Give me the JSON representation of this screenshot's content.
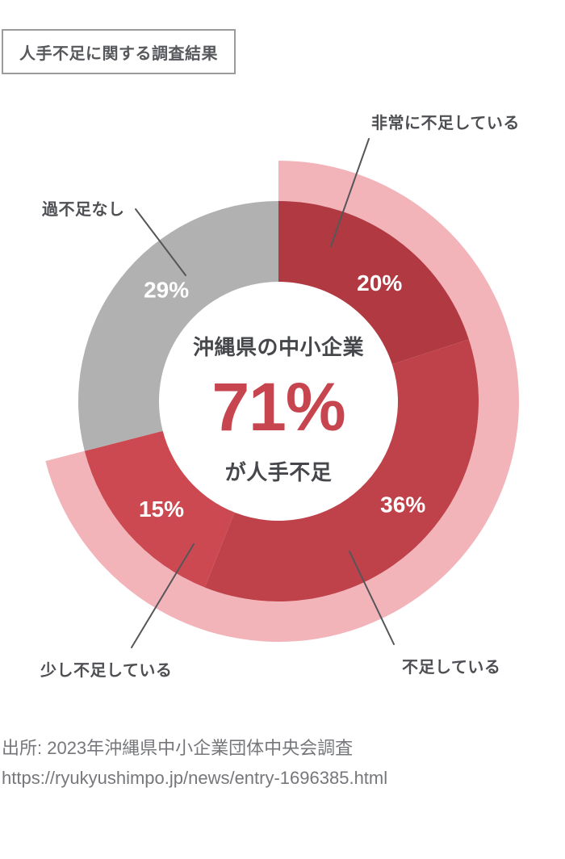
{
  "header": {
    "title": "人手不足に関する調査結果"
  },
  "chart_data": {
    "type": "pie",
    "donut": true,
    "title": "人手不足に関する調査結果",
    "unit": "%",
    "start_angle_deg": 0,
    "direction": "clockwise",
    "legend_position": "callout-labels",
    "segments": [
      {
        "label": "非常に不足している",
        "value": 20,
        "color": "#b13a42"
      },
      {
        "label": "不足している",
        "value": 36,
        "color": "#bf4149"
      },
      {
        "label": "少し不足している",
        "value": 15,
        "color": "#cc4951"
      },
      {
        "label": "過不足なし",
        "value": 29,
        "color": "#b1b1b1"
      }
    ],
    "percent_label_color": "#ffffff",
    "highlight_ring": {
      "covers_values_total": 71,
      "color": "#f2b3b9",
      "covered_segments": [
        "非常に不足している",
        "不足している",
        "少し不足している"
      ]
    },
    "center_label": {
      "line1": "沖縄県の中小企業",
      "value": "71%",
      "line2": "が人手不足",
      "value_color": "#c6454e"
    }
  },
  "source": {
    "line1": "出所: 2023年沖縄県中小企業団体中央会調査",
    "line2": "https://ryukyushimpo.jp/news/entry-1696385.html"
  }
}
